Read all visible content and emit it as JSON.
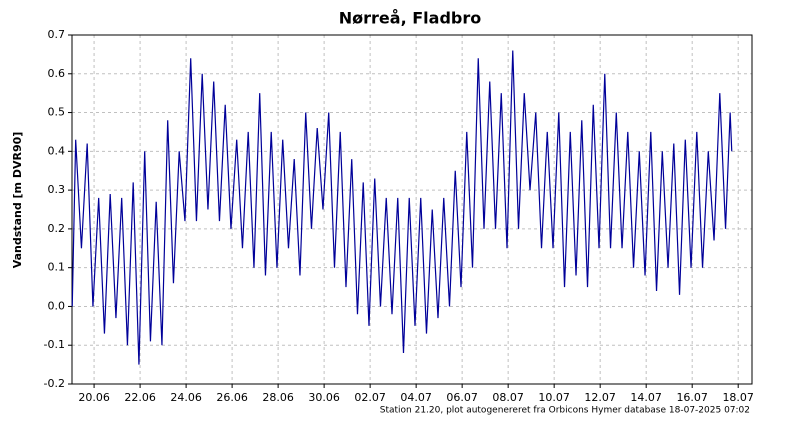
{
  "chart_data": {
    "type": "line",
    "title": "Nørreå, Fladbro",
    "ylabel": "Vandstand [m DVR90]",
    "footnote": "Station 21.20, plot autogenereret fra Orbicons Hymer database 18-07-2025 07:02",
    "color": "#000099",
    "grid": true,
    "xlim": [
      19.04,
      48.6
    ],
    "ylim": [
      -0.2,
      0.7
    ],
    "xticks": [
      {
        "value": 20,
        "label": "20.06"
      },
      {
        "value": 22,
        "label": "22.06"
      },
      {
        "value": 24,
        "label": "24.06"
      },
      {
        "value": 26,
        "label": "26.06"
      },
      {
        "value": 28,
        "label": "28.06"
      },
      {
        "value": 30,
        "label": "30.06"
      },
      {
        "value": 32,
        "label": "02.07"
      },
      {
        "value": 34,
        "label": "04.07"
      },
      {
        "value": 36,
        "label": "06.07"
      },
      {
        "value": 38,
        "label": "08.07"
      },
      {
        "value": 40,
        "label": "10.07"
      },
      {
        "value": 42,
        "label": "12.07"
      },
      {
        "value": 44,
        "label": "14.07"
      },
      {
        "value": 46,
        "label": "16.07"
      },
      {
        "value": 48,
        "label": "18.07"
      }
    ],
    "yticks": [
      -0.2,
      -0.1,
      {
        "value": 0,
        "label": "0.0"
      },
      0.1,
      0.2,
      0.3,
      0.4,
      0.5,
      0.6,
      0.7
    ],
    "x": [
      19.05,
      19.2,
      19.45,
      19.7,
      19.95,
      20.2,
      20.45,
      20.7,
      20.95,
      21.2,
      21.45,
      21.7,
      21.95,
      22.2,
      22.45,
      22.7,
      22.95,
      23.2,
      23.45,
      23.7,
      23.95,
      24.2,
      24.45,
      24.7,
      24.95,
      25.2,
      25.45,
      25.7,
      25.95,
      26.2,
      26.45,
      26.7,
      26.95,
      27.2,
      27.45,
      27.7,
      27.95,
      28.2,
      28.45,
      28.7,
      28.95,
      29.2,
      29.45,
      29.7,
      29.95,
      30.2,
      30.45,
      30.7,
      30.95,
      31.2,
      31.45,
      31.7,
      31.95,
      32.2,
      32.45,
      32.7,
      32.95,
      33.2,
      33.45,
      33.7,
      33.95,
      34.2,
      34.45,
      34.7,
      34.95,
      35.2,
      35.45,
      35.7,
      35.95,
      36.2,
      36.45,
      36.7,
      36.95,
      37.2,
      37.45,
      37.7,
      37.95,
      38.2,
      38.45,
      38.7,
      38.95,
      39.2,
      39.45,
      39.7,
      39.95,
      40.2,
      40.45,
      40.7,
      40.95,
      41.2,
      41.45,
      41.7,
      41.95,
      42.2,
      42.45,
      42.7,
      42.95,
      43.2,
      43.45,
      43.7,
      43.95,
      44.2,
      44.45,
      44.7,
      44.95,
      45.2,
      45.45,
      45.7,
      45.95,
      46.2,
      46.45,
      46.7,
      46.95,
      47.2,
      47.45,
      47.65,
      47.72
    ],
    "values": [
      0.0,
      0.43,
      0.15,
      0.42,
      0.0,
      0.28,
      -0.07,
      0.29,
      -0.03,
      0.28,
      -0.1,
      0.32,
      -0.15,
      0.4,
      -0.09,
      0.27,
      -0.1,
      0.48,
      0.06,
      0.4,
      0.22,
      0.64,
      0.22,
      0.6,
      0.25,
      0.58,
      0.22,
      0.52,
      0.2,
      0.43,
      0.15,
      0.45,
      0.1,
      0.55,
      0.08,
      0.45,
      0.1,
      0.43,
      0.15,
      0.38,
      0.08,
      0.5,
      0.2,
      0.46,
      0.25,
      0.5,
      0.1,
      0.45,
      0.05,
      0.38,
      -0.02,
      0.32,
      -0.05,
      0.33,
      0.0,
      0.28,
      -0.02,
      0.28,
      -0.12,
      0.28,
      -0.05,
      0.28,
      -0.07,
      0.25,
      -0.03,
      0.28,
      0.0,
      0.35,
      0.05,
      0.45,
      0.1,
      0.64,
      0.2,
      0.58,
      0.2,
      0.55,
      0.15,
      0.66,
      0.2,
      0.55,
      0.3,
      0.5,
      0.15,
      0.45,
      0.15,
      0.5,
      0.05,
      0.45,
      0.08,
      0.48,
      0.05,
      0.52,
      0.15,
      0.6,
      0.15,
      0.5,
      0.15,
      0.45,
      0.1,
      0.4,
      0.08,
      0.45,
      0.04,
      0.4,
      0.1,
      0.42,
      0.03,
      0.43,
      0.1,
      0.45,
      0.1,
      0.4,
      0.17,
      0.55,
      0.2,
      0.5,
      0.4
    ]
  }
}
